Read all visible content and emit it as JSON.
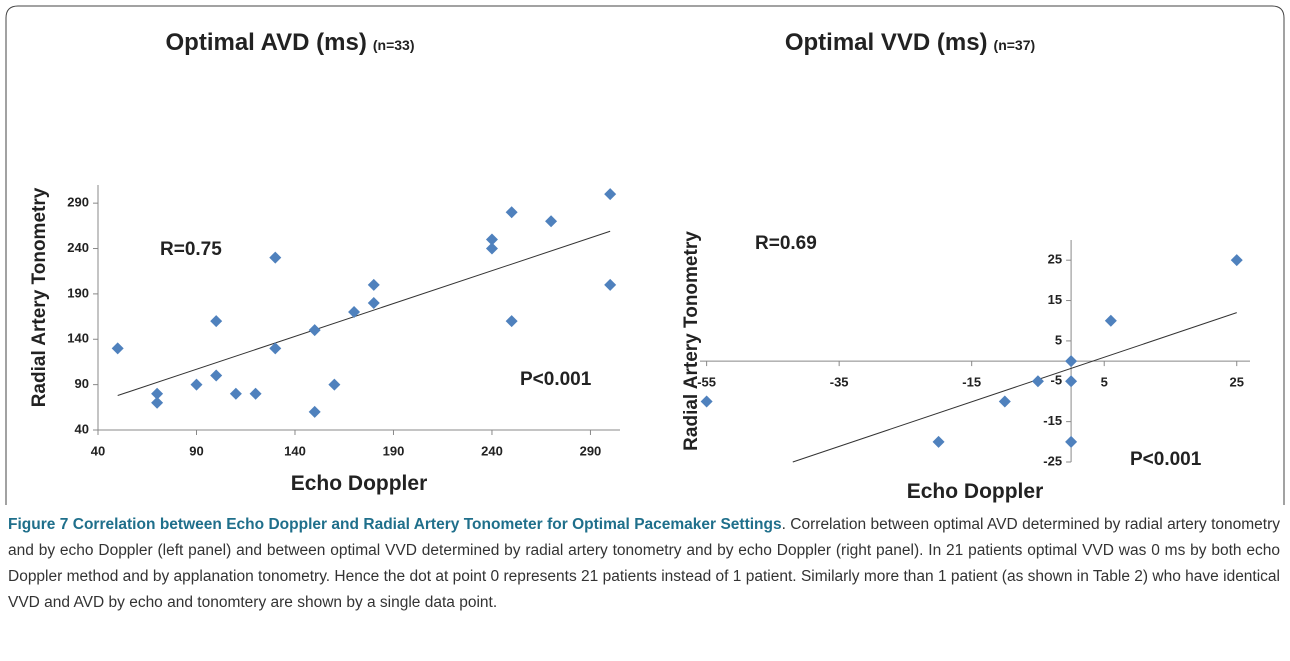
{
  "chart_data": [
    {
      "type": "scatter",
      "title": "Optimal AVD (ms)",
      "subtitle": "(n=33)",
      "xlabel": "Echo Doppler",
      "ylabel": "Radial Artery Tonometry",
      "annotations": [
        "R=0.75",
        "P<0.001"
      ],
      "color": "#4f81bd",
      "x": [
        50,
        70,
        70,
        90,
        100,
        100,
        110,
        120,
        130,
        130,
        150,
        150,
        160,
        170,
        180,
        180,
        240,
        240,
        250,
        250,
        270,
        300,
        300
      ],
      "y": [
        130,
        80,
        70,
        90,
        100,
        160,
        80,
        80,
        230,
        130,
        150,
        60,
        90,
        170,
        180,
        200,
        250,
        240,
        280,
        160,
        270,
        300,
        200
      ],
      "trendline": {
        "x": [
          50,
          300
        ],
        "y": [
          78,
          259
        ]
      },
      "xlim": [
        40,
        305
      ],
      "ylim": [
        40,
        310
      ],
      "xticks": [
        40,
        90,
        140,
        190,
        240,
        290
      ],
      "yticks": [
        40,
        90,
        140,
        190,
        240,
        290
      ]
    },
    {
      "type": "scatter",
      "title": "Optimal VVD (ms)",
      "subtitle": "(n=37)",
      "xlabel": "Echo Doppler",
      "ylabel": "Radial Artery Tonometry",
      "annotations": [
        "R=0.69",
        "P<0.001"
      ],
      "color": "#4f81bd",
      "x": [
        0,
        0,
        0,
        -5,
        -10,
        -20,
        -55,
        6,
        25
      ],
      "y": [
        0,
        -5,
        -20,
        -5,
        -10,
        -20,
        -10,
        10,
        25
      ],
      "trendline": {
        "x": [
          -42,
          25
        ],
        "y": [
          -25,
          12
        ]
      },
      "xlim": [
        -56,
        27
      ],
      "ylim": [
        -25,
        30
      ],
      "xticks": [
        -55,
        -35,
        -15,
        5,
        25
      ],
      "yticks": [
        -25,
        -15,
        -5,
        5,
        15,
        25
      ]
    }
  ],
  "caption": {
    "title": "Figure 7 Correlation between Echo Doppler and Radial Artery Tonometer for Optimal Pacemaker Settings",
    "text": ". Correlation between optimal AVD determined by radial artery tonometry and by echo Doppler (left panel) and between optimal VVD determined by radial artery tonometry and by echo Doppler (right panel). In 21 patients optimal VVD was 0 ms by both echo Doppler method and by applanation tonometry. Hence the dot at point 0 represents 21 patients instead of 1 patient. Similarly more than 1 patient (as shown in Table 2) who have identical VVD and AVD by echo and tonomtery are shown by a single data point."
  }
}
